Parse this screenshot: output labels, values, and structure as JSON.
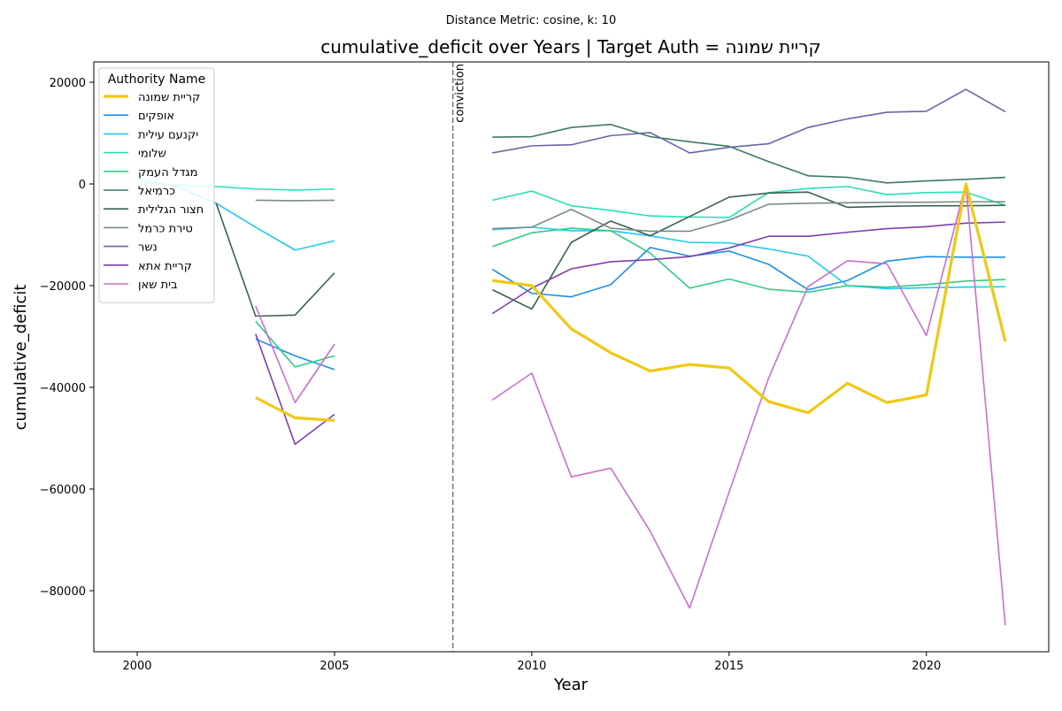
{
  "suptitle": "Distance Metric: cosine, k: 10",
  "chart_data": {
    "type": "line",
    "title": "cumulative_deficit over Years | Target Auth = קריית שמונה",
    "xlabel": "Year",
    "ylabel": "cumulative_deficit",
    "xlim": [
      1998.9,
      2023.1
    ],
    "ylim": [
      -92000,
      24000
    ],
    "x_ticks": [
      2000,
      2005,
      2010,
      2015,
      2020
    ],
    "y_ticks": [
      -80000,
      -60000,
      -40000,
      -20000,
      0,
      20000
    ],
    "vline": {
      "x": 2008,
      "label": "conviction",
      "color": "#808080"
    },
    "legend": {
      "title": "Authority Name",
      "position": "top-left"
    },
    "x": [
      2000,
      2001,
      2002,
      2003,
      2004,
      2005,
      2006,
      2007,
      2008,
      2009,
      2010,
      2011,
      2012,
      2013,
      2014,
      2015,
      2016,
      2017,
      2018,
      2019,
      2020,
      2021,
      2022
    ],
    "series": [
      {
        "name": "קריית שמונה",
        "color": "#f0c814",
        "width": 3.2,
        "target": true,
        "values": [
          null,
          null,
          null,
          -42000,
          -46000,
          -46500,
          null,
          null,
          null,
          -19000,
          -20000,
          -28500,
          -33200,
          -36800,
          -35500,
          -36200,
          -42800,
          -45000,
          -39200,
          -43000,
          -41500,
          0,
          -31000
        ]
      },
      {
        "name": "אופקים",
        "color": "#1f8fe6",
        "width": 1.6,
        "values": [
          null,
          null,
          null,
          -30500,
          -33800,
          -36500,
          null,
          null,
          null,
          -16800,
          -21500,
          -22200,
          -19800,
          -12500,
          -14200,
          -13200,
          -15800,
          -20800,
          -19000,
          -15200,
          -14300,
          -14400,
          -14400
        ]
      },
      {
        "name": "יקנעם עילית",
        "color": "#22c8f0",
        "width": 1.6,
        "values": [
          1000,
          -500,
          -3800,
          -8500,
          -13000,
          -11200,
          null,
          null,
          null,
          -9000,
          -8500,
          -9200,
          -9200,
          -10200,
          -11500,
          -11600,
          -12800,
          -14200,
          -20000,
          -20600,
          -20400,
          -20300,
          -20200
        ]
      },
      {
        "name": "שלומי",
        "color": "#28e0b4",
        "width": 1.6,
        "values": [
          300,
          -200,
          -500,
          -1000,
          -1200,
          -1000,
          null,
          null,
          null,
          -3200,
          -1400,
          -4300,
          -5200,
          -6300,
          -6500,
          -6600,
          -1700,
          -900,
          -500,
          -2100,
          -1700,
          -1600,
          -4200
        ]
      },
      {
        "name": "מגדל העמק",
        "color": "#2ecc84",
        "width": 1.6,
        "values": [
          null,
          null,
          null,
          -27000,
          -36000,
          -33800,
          null,
          null,
          null,
          -12300,
          -9600,
          -8700,
          -9200,
          -13600,
          -20500,
          -18700,
          -20700,
          -21300,
          -20000,
          -20300,
          -19800,
          -19100,
          -18800
        ]
      },
      {
        "name": "כרמיאל",
        "color": "#3a7d5c",
        "width": 1.6,
        "values": [
          null,
          null,
          null,
          null,
          null,
          null,
          null,
          null,
          null,
          9200,
          9300,
          11100,
          11700,
          9300,
          8300,
          7400,
          4400,
          1600,
          1300,
          200,
          600,
          900,
          1300
        ]
      },
      {
        "name": "חצור הגלילית",
        "color": "#3b6150",
        "width": 1.6,
        "values": [
          null,
          null,
          -3800,
          -26000,
          -25800,
          -17500,
          null,
          null,
          null,
          -20800,
          -24600,
          -11500,
          -7300,
          -10200,
          -6400,
          -2600,
          -1800,
          -1600,
          -4600,
          -4400,
          -4300,
          -4300,
          -4200
        ]
      },
      {
        "name": "טירת כרמל",
        "color": "#7a8a85",
        "width": 1.6,
        "values": [
          null,
          null,
          null,
          -3200,
          -3300,
          -3200,
          null,
          null,
          null,
          -8800,
          -8500,
          -5000,
          -8700,
          -9300,
          -9300,
          -7100,
          -4000,
          -3800,
          -3700,
          -3600,
          -3600,
          -3500,
          -3500
        ]
      },
      {
        "name": "נשר",
        "color": "#6566a8",
        "width": 1.6,
        "values": [
          null,
          null,
          null,
          null,
          null,
          null,
          null,
          null,
          null,
          6100,
          7500,
          7700,
          9500,
          10100,
          6100,
          7200,
          7900,
          11100,
          12800,
          14100,
          14300,
          18600,
          14200
        ]
      },
      {
        "name": "קריית אתא",
        "color": "#7b3fb0",
        "width": 1.6,
        "values": [
          null,
          null,
          null,
          -29500,
          -51200,
          -45300,
          null,
          null,
          null,
          -25500,
          -20500,
          -16700,
          -15300,
          -14900,
          -14300,
          -12600,
          -10300,
          -10300,
          -9500,
          -8800,
          -8400,
          -7700,
          -7500
        ]
      },
      {
        "name": "בית שאן",
        "color": "#cc6ed0",
        "width": 1.6,
        "values": [
          null,
          null,
          null,
          -24000,
          -43000,
          -31500,
          null,
          null,
          null,
          -42500,
          -37200,
          -57600,
          -55900,
          -68300,
          -83400,
          -60600,
          -38200,
          -20200,
          -15100,
          -15700,
          -29800,
          0,
          -86800
        ]
      }
    ]
  }
}
